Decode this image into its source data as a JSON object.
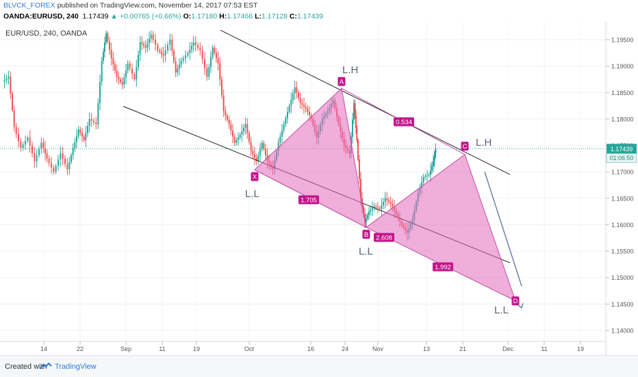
{
  "header": {
    "author": "BLVCK_FOREX",
    "published_text": " published on TradingView.com, November 14, 2017 07:53 EST",
    "symbol": "OANDA:EURUSD, 240",
    "last": "1.17439",
    "change": "▲ +0.00765 (+0.66%)",
    "o_label": "O:",
    "o": "1.17180",
    "h_label": "H:",
    "h": "1.17466",
    "l_label": "L:",
    "l": "1.17128",
    "c_label": "C:",
    "c": "1.17439"
  },
  "footer": {
    "created_with": "Created with",
    "brand": "TradingView"
  },
  "colors": {
    "bull": "#26a69a",
    "bear": "#ef5350",
    "pattern_fill": "#e36bbd",
    "pattern_stroke": "#c04fa0",
    "label_bg": "#c2168b",
    "channel": "#222222",
    "arrow": "#6b82a8",
    "price_badge": "#26a69a"
  },
  "chart_data": {
    "type": "candlestick",
    "title": "EUR/USD, 240, OANDA",
    "x_ticks": [
      "14",
      "22",
      "Sep",
      "11",
      "19",
      "Oct",
      "16",
      "24",
      "Nov",
      "13",
      "21",
      "Dec",
      "11",
      "19"
    ],
    "y_ticks": [
      "1.19500",
      "1.19000",
      "1.18500",
      "1.18000",
      "1.17500",
      "1.17000",
      "1.16500",
      "1.16000",
      "1.15500",
      "1.15000",
      "1.14500",
      "1.14000"
    ],
    "ylim": [
      1.1375,
      1.1988
    ],
    "last_price": "1.17439",
    "countdown": "01:06:50",
    "harmonic_points": [
      {
        "label": "X",
        "price": 1.1704
      },
      {
        "label": "A",
        "price": 1.1858
      },
      {
        "label": "B",
        "price": 1.1595
      },
      {
        "label": "C",
        "price": 1.1733
      },
      {
        "label": "D",
        "price": 1.1456
      }
    ],
    "ratios": [
      "0.534",
      "1.705",
      "2.608",
      "1.992"
    ],
    "annotations": [
      "L.H",
      "L.L",
      "L.L",
      "L.H",
      "L.L"
    ]
  }
}
